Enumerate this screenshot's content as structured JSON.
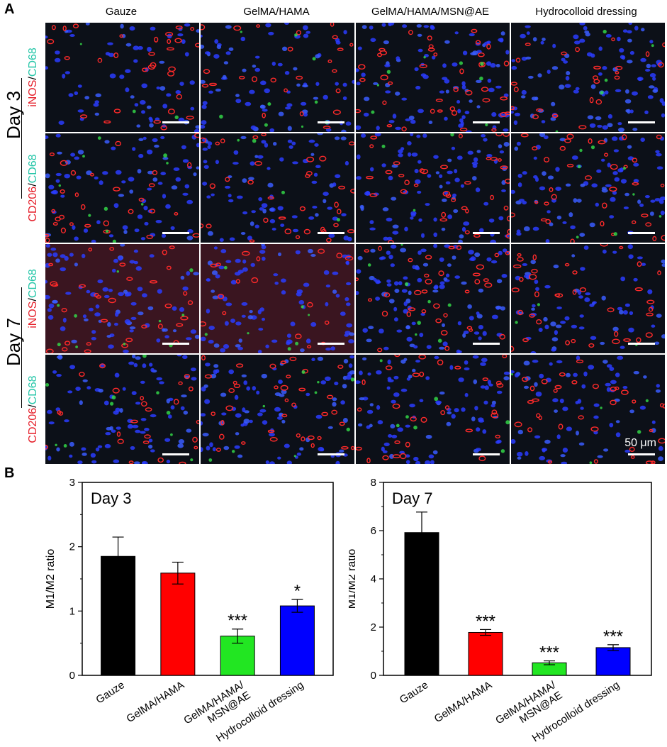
{
  "panel_a_letter": "A",
  "panel_b_letter": "B",
  "columns": [
    "Gauze",
    "GelMA/HAMA",
    "GelMA/HAMA/MSN@AE",
    "Hydrocolloid dressing"
  ],
  "days": [
    "Day 3",
    "Day 7"
  ],
  "row_labels": [
    {
      "red": "iNOS",
      "slash": "/",
      "teal": "CD68"
    },
    {
      "red": "CD206",
      "slash": "/",
      "teal": "CD68"
    },
    {
      "red": "iNOS",
      "slash": "/",
      "teal": "CD68"
    },
    {
      "red": "CD206",
      "slash": "/",
      "teal": "CD68"
    }
  ],
  "scale_label": "50 μm",
  "colors": {
    "red_label": "#e5202b",
    "teal_label": "#25c6a8",
    "nuclei": "#2a3cff",
    "cell_red": "#ff2a2a"
  },
  "chart_data": [
    {
      "type": "bar",
      "title": "Day 3",
      "ylabel": "M1/M2 ratio",
      "categories": [
        "Gauze",
        "GelMA/HAMA",
        "GelMA/HAMA/\nMSN@AE",
        "Hydrocolloid dressing"
      ],
      "values": [
        1.85,
        1.59,
        0.61,
        1.08
      ],
      "errors": [
        0.3,
        0.17,
        0.11,
        0.1
      ],
      "significance": [
        "",
        "",
        "***",
        "*"
      ],
      "colors": [
        "#000000",
        "#ff0000",
        "#22e622",
        "#0000ff"
      ],
      "ylim": [
        0,
        3
      ],
      "yticks": [
        0,
        1,
        2,
        3
      ]
    },
    {
      "type": "bar",
      "title": "Day 7",
      "ylabel": "M1/M2 ratio",
      "categories": [
        "Gauze",
        "GelMA/HAMA",
        "GelMA/HAMA/\nMSN@AE",
        "Hydrocolloid dressing"
      ],
      "values": [
        5.92,
        1.78,
        0.52,
        1.15
      ],
      "errors": [
        0.85,
        0.12,
        0.08,
        0.12
      ],
      "significance": [
        "",
        "***",
        "***",
        "***"
      ],
      "colors": [
        "#000000",
        "#ff0000",
        "#22e622",
        "#0000ff"
      ],
      "ylim": [
        0,
        8
      ],
      "yticks": [
        0,
        2,
        4,
        6,
        8
      ]
    }
  ]
}
